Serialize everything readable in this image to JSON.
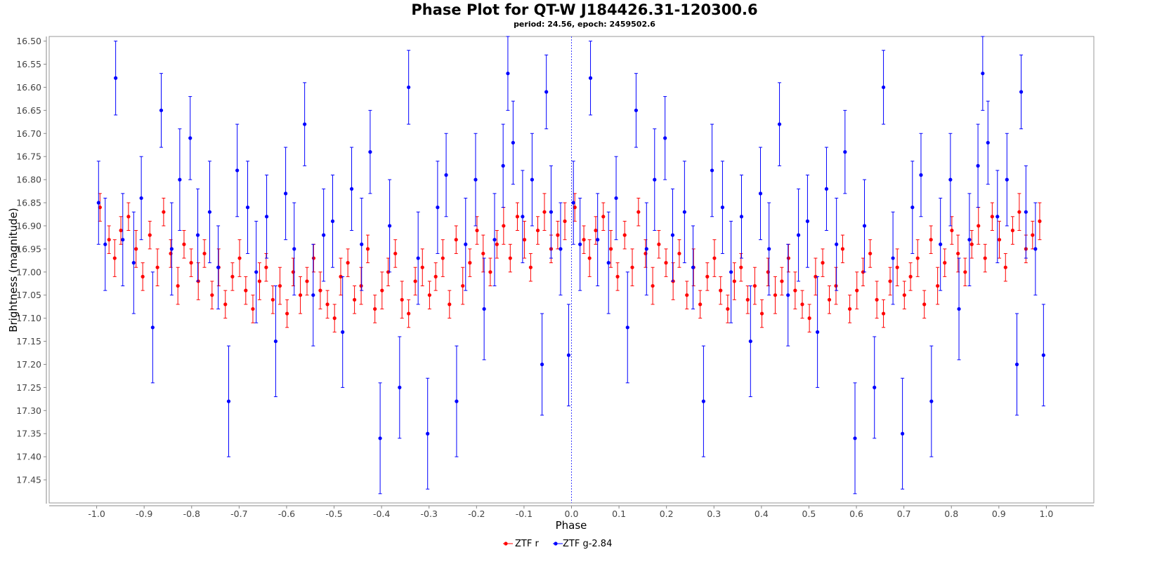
{
  "chart_data": {
    "type": "scatter",
    "title": "Phase Plot for QT-W J184426.31-120300.6",
    "subtitle": "period: 24.56, epoch: 2459502.6",
    "xlabel": "Phase",
    "ylabel": "Brightness (magnitude)",
    "xlim": [
      -1.1,
      1.1
    ],
    "ylim": [
      16.49,
      17.5
    ],
    "y_inverted": true,
    "grid": false,
    "legend": "bottom-center",
    "x_ticks": [
      "-1.0",
      "-0.9",
      "-0.8",
      "-0.7",
      "-0.6",
      "-0.5",
      "-0.4",
      "-0.3",
      "-0.2",
      "-0.1",
      "0.0",
      "0.1",
      "0.2",
      "0.3",
      "0.4",
      "0.5",
      "0.6",
      "0.7",
      "0.8",
      "0.9",
      "1.0"
    ],
    "y_ticks": [
      "16.50",
      "16.55",
      "16.60",
      "16.65",
      "16.70",
      "16.75",
      "16.80",
      "16.85",
      "16.90",
      "16.95",
      "17.00",
      "17.05",
      "17.10",
      "17.15",
      "17.20",
      "17.25",
      "17.30",
      "17.35",
      "17.40",
      "17.45"
    ],
    "marker_line_x": 0.0,
    "series": [
      {
        "name": "ZTF r",
        "color": "#ff0000",
        "x": [
          0.007,
          0.026,
          0.038,
          0.051,
          0.067,
          0.083,
          0.097,
          0.112,
          0.128,
          0.141,
          0.156,
          0.171,
          0.184,
          0.199,
          0.214,
          0.227,
          0.243,
          0.257,
          0.271,
          0.286,
          0.301,
          0.314,
          0.329,
          0.343,
          0.357,
          0.371,
          0.386,
          0.401,
          0.414,
          0.429,
          0.443,
          0.457,
          0.471,
          0.486,
          0.501,
          0.514,
          0.529,
          0.543,
          0.557,
          0.571,
          0.586,
          0.601,
          0.614,
          0.629,
          0.643,
          0.657,
          0.671,
          0.686,
          0.701,
          0.714,
          0.729,
          0.743,
          0.757,
          0.771,
          0.786,
          0.801,
          0.814,
          0.829,
          0.843,
          0.857,
          0.871,
          0.886,
          0.901,
          0.914,
          0.929,
          0.943,
          0.957,
          0.971,
          0.986
        ],
        "y": [
          16.86,
          16.93,
          16.97,
          16.91,
          16.88,
          16.95,
          17.01,
          16.92,
          16.99,
          16.87,
          16.96,
          17.03,
          16.94,
          16.98,
          17.02,
          16.96,
          17.05,
          16.99,
          17.07,
          17.01,
          16.97,
          17.04,
          17.08,
          17.02,
          16.99,
          17.06,
          17.03,
          17.09,
          17.0,
          17.05,
          17.02,
          16.97,
          17.04,
          17.07,
          17.1,
          17.01,
          16.98,
          17.06,
          17.03,
          16.95,
          17.08,
          17.04,
          17.0,
          16.96,
          17.06,
          17.09,
          17.02,
          16.99,
          17.05,
          17.01,
          16.97,
          17.07,
          16.93,
          17.03,
          16.98,
          16.91,
          16.96,
          17.0,
          16.94,
          16.9,
          16.97,
          16.88,
          16.93,
          16.99,
          16.91,
          16.87,
          16.95,
          16.92,
          16.89
        ],
        "errors": [
          0.03,
          0.03,
          0.04,
          0.03,
          0.03,
          0.04,
          0.03,
          0.03,
          0.04,
          0.03,
          0.03,
          0.04,
          0.03,
          0.03,
          0.04,
          0.03,
          0.03,
          0.04,
          0.03,
          0.03,
          0.04,
          0.03,
          0.03,
          0.04,
          0.03,
          0.03,
          0.04,
          0.03,
          0.03,
          0.04,
          0.03,
          0.03,
          0.04,
          0.03,
          0.03,
          0.04,
          0.03,
          0.03,
          0.04,
          0.03,
          0.03,
          0.04,
          0.03,
          0.03,
          0.04,
          0.03,
          0.03,
          0.04,
          0.03,
          0.03,
          0.04,
          0.03,
          0.03,
          0.04,
          0.03,
          0.03,
          0.04,
          0.03,
          0.03,
          0.04,
          0.03,
          0.03,
          0.04,
          0.03,
          0.03,
          0.04,
          0.03,
          0.03,
          0.04
        ]
      },
      {
        "name": "ZTF g-2.84",
        "color": "#0000ff",
        "x": [
          0.004,
          0.018,
          0.04,
          0.055,
          0.078,
          0.094,
          0.118,
          0.136,
          0.158,
          0.175,
          0.197,
          0.213,
          0.238,
          0.256,
          0.278,
          0.296,
          0.318,
          0.336,
          0.358,
          0.377,
          0.398,
          0.416,
          0.438,
          0.456,
          0.478,
          0.497,
          0.518,
          0.537,
          0.558,
          0.576,
          0.597,
          0.617,
          0.638,
          0.657,
          0.677,
          0.697,
          0.718,
          0.736,
          0.758,
          0.777,
          0.798,
          0.816,
          0.838,
          0.856,
          0.866,
          0.877,
          0.897,
          0.917,
          0.938,
          0.947,
          0.957,
          0.977,
          0.994
        ],
        "y": [
          16.85,
          16.94,
          16.58,
          16.93,
          16.98,
          16.84,
          17.12,
          16.65,
          16.95,
          16.8,
          16.71,
          16.92,
          16.87,
          16.99,
          17.28,
          16.78,
          16.86,
          17.0,
          16.88,
          17.15,
          16.83,
          16.95,
          16.68,
          17.05,
          16.92,
          16.89,
          17.13,
          16.82,
          16.94,
          16.74,
          17.36,
          16.9,
          17.25,
          16.6,
          16.97,
          17.35,
          16.86,
          16.79,
          17.28,
          16.94,
          16.8,
          17.08,
          16.93,
          16.77,
          16.57,
          16.72,
          16.88,
          16.8,
          17.2,
          16.61,
          16.87,
          16.95,
          17.18
        ],
        "errors": [
          0.09,
          0.1,
          0.08,
          0.1,
          0.11,
          0.09,
          0.12,
          0.08,
          0.1,
          0.11,
          0.09,
          0.1,
          0.11,
          0.09,
          0.12,
          0.1,
          0.1,
          0.11,
          0.09,
          0.12,
          0.1,
          0.1,
          0.09,
          0.11,
          0.1,
          0.1,
          0.12,
          0.09,
          0.1,
          0.09,
          0.12,
          0.1,
          0.11,
          0.08,
          0.1,
          0.12,
          0.1,
          0.09,
          0.12,
          0.1,
          0.1,
          0.11,
          0.1,
          0.09,
          0.08,
          0.09,
          0.1,
          0.1,
          0.11,
          0.08,
          0.1,
          0.1,
          0.11
        ]
      }
    ]
  }
}
